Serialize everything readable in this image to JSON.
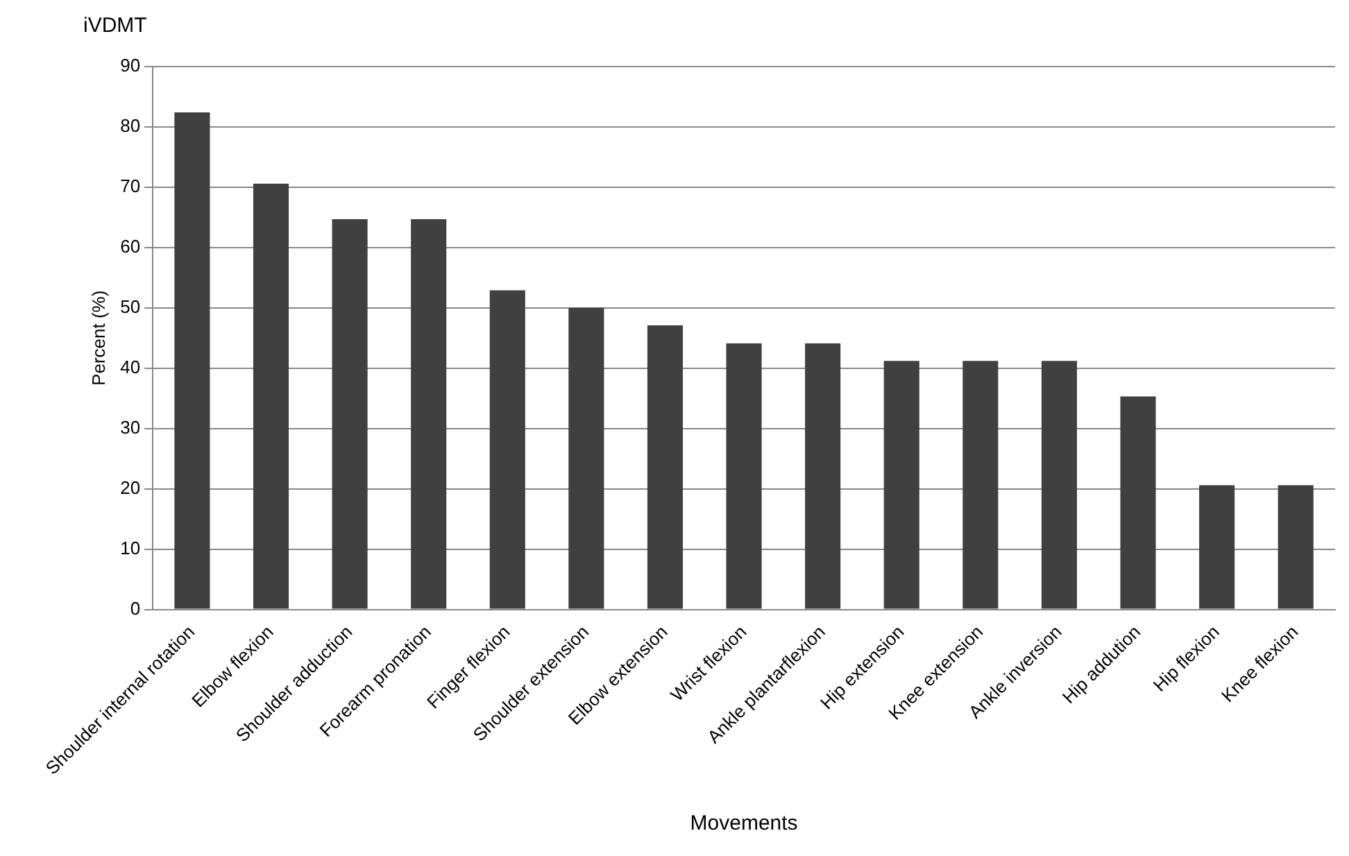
{
  "chart_data": {
    "type": "bar",
    "title": "iVDMT",
    "xlabel": "Movements",
    "ylabel": "Percent (%)",
    "categories": [
      "Shoulder internal rotation",
      "Elbow flexion",
      "Shoulder adduction",
      "Forearm pronation",
      "Finger flexion",
      "Shoulder extension",
      "Elbow extension",
      "Wrist flexion",
      "Ankle plantarflexion",
      "Hip extension",
      "Knee extension",
      "Ankle inversion",
      "Hip addution",
      "Hip flexion",
      "Knee flexion"
    ],
    "values": [
      82.4,
      70.6,
      64.7,
      64.7,
      52.9,
      50,
      47.1,
      44.1,
      44.1,
      41.2,
      41.2,
      41.2,
      35.3,
      20.6,
      20.6
    ],
    "color": "#404040",
    "ylim": [
      0,
      90
    ],
    "yticks": [
      0,
      10,
      20,
      30,
      40,
      50,
      60,
      70,
      80,
      90
    ],
    "grid": "y"
  }
}
